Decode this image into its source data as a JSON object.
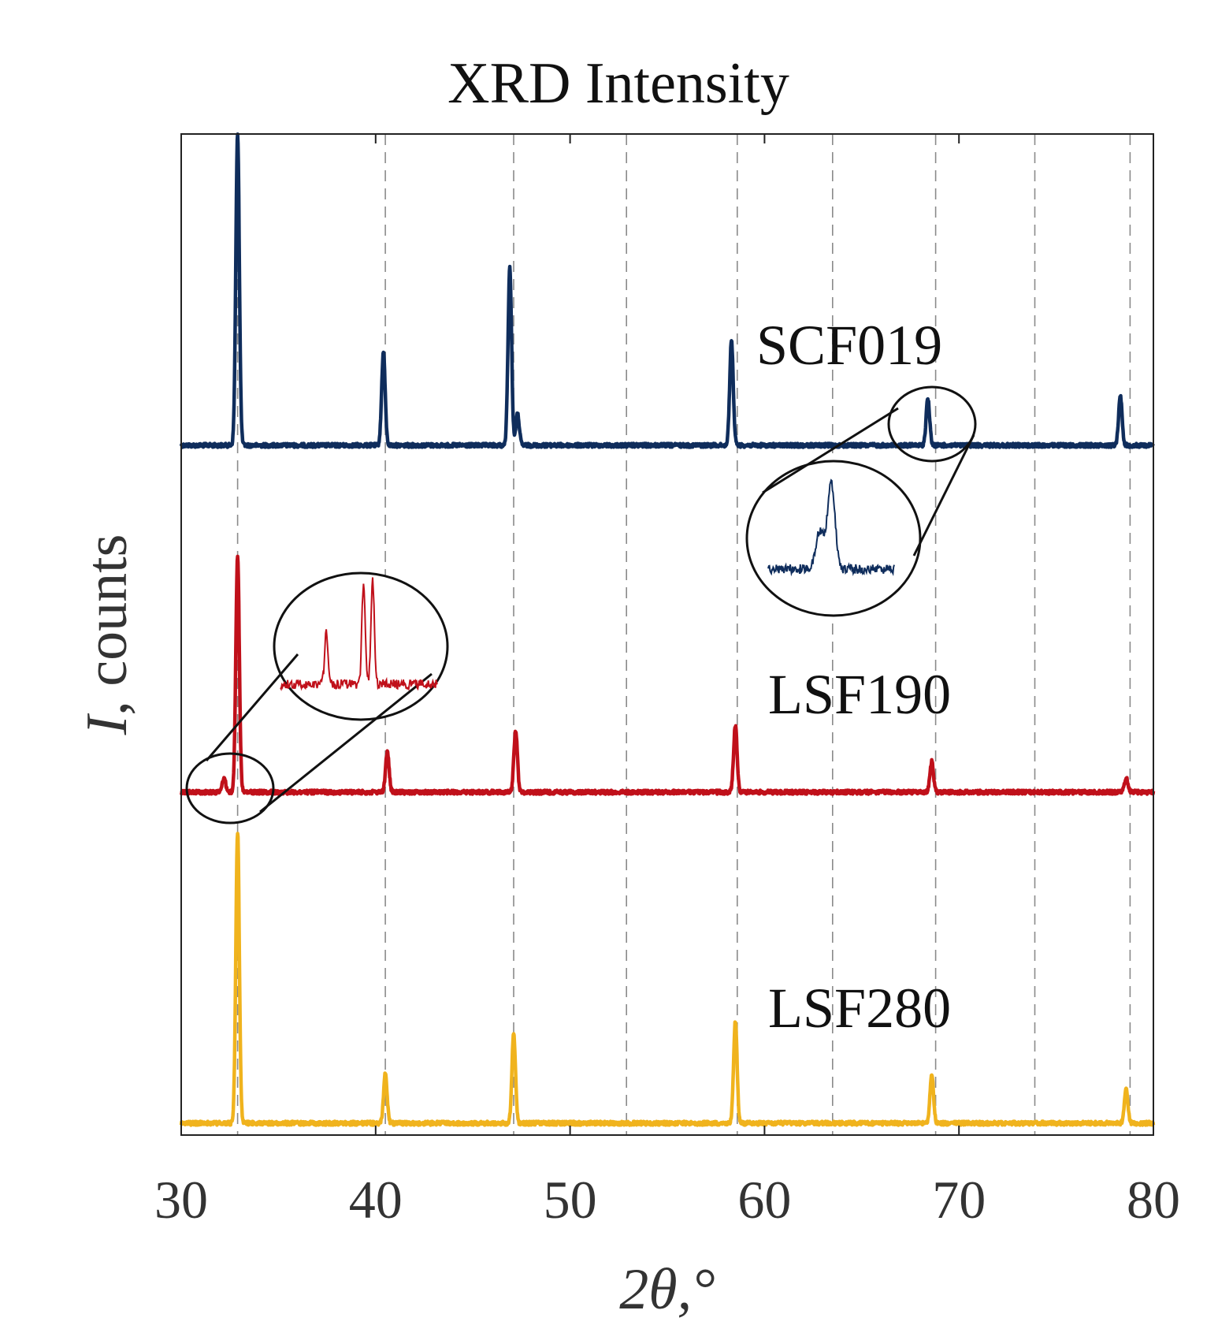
{
  "chart_data": {
    "type": "line",
    "title": "XRD Intensity",
    "xlabel": "2θ,°",
    "ylabel": "I, counts",
    "ylabel_symbol": "I",
    "ylabel_unit": ", counts",
    "xlim": [
      30,
      80
    ],
    "xticks": [
      "30",
      "40",
      "50",
      "60",
      "70",
      "80"
    ],
    "grid": "vertical dashed lines at reflection positions",
    "reference_lines": [
      32.9,
      40.5,
      47.1,
      52.9,
      58.6,
      63.5,
      68.8,
      73.9,
      78.8
    ],
    "series": [
      {
        "name": "SCF019",
        "color": "#0f2d5c",
        "peaks": [
          {
            "x": 32.9,
            "height": 1.0
          },
          {
            "x": 40.4,
            "height": 0.3
          },
          {
            "x": 46.9,
            "height": 0.57
          },
          {
            "x": 47.3,
            "height": 0.1
          },
          {
            "x": 58.3,
            "height": 0.34
          },
          {
            "x": 68.4,
            "height": 0.15
          },
          {
            "x": 78.3,
            "height": 0.16
          }
        ],
        "inset": "zoom on the peak near 68.4° showing a shoulder"
      },
      {
        "name": "LSF190",
        "color": "#c0101a",
        "peaks": [
          {
            "x": 32.2,
            "height": 0.06
          },
          {
            "x": 32.9,
            "height": 1.0
          },
          {
            "x": 40.6,
            "height": 0.17
          },
          {
            "x": 47.2,
            "height": 0.26
          },
          {
            "x": 58.5,
            "height": 0.28
          },
          {
            "x": 68.6,
            "height": 0.13
          },
          {
            "x": 78.6,
            "height": 0.06
          }
        ],
        "inset": "zoom on 31.5–33.5° showing a small secondary peak next to the main peak"
      },
      {
        "name": "LSF280",
        "color": "#f0b31d",
        "peaks": [
          {
            "x": 32.9,
            "height": 1.0
          },
          {
            "x": 40.5,
            "height": 0.17
          },
          {
            "x": 47.1,
            "height": 0.31
          },
          {
            "x": 58.5,
            "height": 0.35
          },
          {
            "x": 68.6,
            "height": 0.17
          },
          {
            "x": 78.6,
            "height": 0.12
          }
        ]
      }
    ]
  }
}
